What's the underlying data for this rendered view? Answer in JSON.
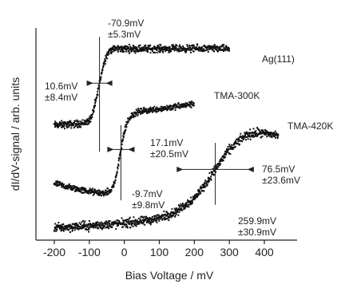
{
  "chart_data": {
    "type": "scatter",
    "xlabel": "Bias Voltage / mV",
    "ylabel": "dI/dV-signal / arb. units",
    "xlim": [
      -250,
      480
    ],
    "x_ticks": [
      "-200",
      "-100",
      "0",
      "100",
      "200",
      "300",
      "400"
    ],
    "y_ticks_labeled": false,
    "series": [
      {
        "name": "Ag(111)",
        "x": [
          -200,
          -150,
          -120,
          -100,
          -90,
          -80,
          -70.9,
          -60,
          -50,
          -40,
          -20,
          0,
          50,
          100,
          150,
          200,
          250,
          300
        ],
        "y": [
          2.6,
          2.62,
          2.64,
          2.7,
          2.85,
          3.2,
          3.55,
          3.95,
          4.2,
          4.3,
          4.33,
          4.33,
          4.33,
          4.33,
          4.33,
          4.33,
          4.33,
          4.33
        ],
        "noise": 0.08,
        "fit": true,
        "step_center": -70.9,
        "step_center_error": 5.3,
        "step_width": 10.6,
        "step_width_error": 8.4
      },
      {
        "name": "TMA-300K",
        "x": [
          -200,
          -150,
          -100,
          -60,
          -40,
          -30,
          -20,
          -9.7,
          0,
          10,
          20,
          40,
          60,
          100,
          150,
          200
        ],
        "y": [
          1.28,
          1.18,
          1.1,
          1.06,
          1.1,
          1.25,
          1.55,
          2.05,
          2.45,
          2.7,
          2.82,
          2.9,
          2.93,
          2.97,
          3.02,
          3.08
        ],
        "noise": 0.07,
        "fit": true,
        "step_center": -9.7,
        "step_center_error": 9.8,
        "step_width": 17.1,
        "step_width_error": 20.5
      },
      {
        "name": "TMA-420K",
        "x": [
          -200,
          -150,
          -100,
          -50,
          0,
          50,
          100,
          150,
          200,
          230,
          259.9,
          290,
          320,
          350,
          380,
          410,
          440
        ],
        "y": [
          0.28,
          0.3,
          0.32,
          0.35,
          0.38,
          0.42,
          0.5,
          0.65,
          0.95,
          1.25,
          1.6,
          1.95,
          2.2,
          2.38,
          2.42,
          2.4,
          2.38
        ],
        "noise": 0.1,
        "fit": true,
        "step_center": 259.9,
        "step_center_error": 30.9,
        "step_width": 76.5,
        "step_width_error": 23.6
      }
    ],
    "annotations": {
      "ag_center": "-70.9mV\n±5.3mV",
      "ag_width": "10.6mV\n±8.4mV",
      "tma300_width": "17.1mV\n±20.5mV",
      "tma300_center": "-9.7mV\n±9.8mV",
      "tma420_width": "76.5mV\n±23.6mV",
      "tma420_center": "259.9mV\n±30.9mV"
    },
    "grid": false,
    "legend": "none"
  }
}
